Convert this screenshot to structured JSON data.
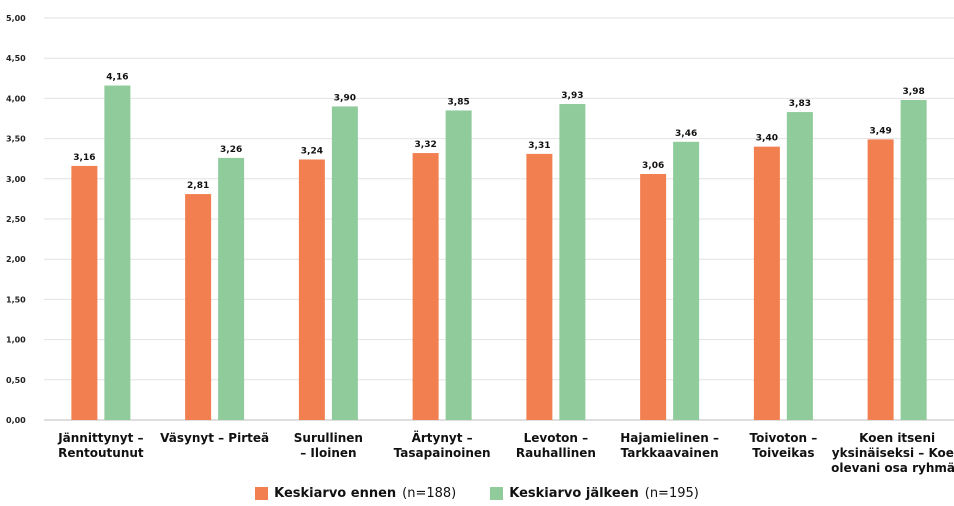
{
  "chart_data": {
    "type": "bar",
    "title": "",
    "xlabel": "",
    "ylabel": "",
    "ylim": [
      0,
      5
    ],
    "yticks": [
      "0,00",
      "0,50",
      "1,00",
      "1,50",
      "2,00",
      "2,50",
      "3,00",
      "3,50",
      "4,00",
      "4,50",
      "5,00"
    ],
    "grid": true,
    "legend_position": "bottom",
    "categories": [
      [
        "Jännittynyt –",
        "Rentoutunut"
      ],
      [
        "Väsynyt – Pirteä"
      ],
      [
        "Surullinen",
        "– Iloinen"
      ],
      [
        "Ärtynyt –",
        "Tasapainoinen"
      ],
      [
        "Levoton –",
        "Rauhallinen"
      ],
      [
        "Hajamielinen –",
        "Tarkkaavainen"
      ],
      [
        "Toivoton –",
        "Toiveikas"
      ],
      [
        "Koen itseni",
        "yksinäiseksi – Koen",
        "olevani osa ryhmää"
      ]
    ],
    "series": [
      {
        "name": "Keskiarvo ennen",
        "name_suffix": "(n=188)",
        "color": "#F27F4F",
        "values": [
          3.16,
          2.81,
          3.24,
          3.32,
          3.31,
          3.06,
          3.4,
          3.49
        ],
        "labels": [
          "3,16",
          "2,81",
          "3,24",
          "3,32",
          "3,31",
          "3,06",
          "3,40",
          "3,49"
        ]
      },
      {
        "name": "Keskiarvo jälkeen",
        "name_suffix": "(n=195)",
        "color": "#8FCB9B",
        "values": [
          4.16,
          3.26,
          3.9,
          3.85,
          3.93,
          3.46,
          3.83,
          3.98
        ],
        "labels": [
          "4,16",
          "3,26",
          "3,90",
          "3,85",
          "3,93",
          "3,46",
          "3,83",
          "3,98"
        ]
      }
    ]
  }
}
